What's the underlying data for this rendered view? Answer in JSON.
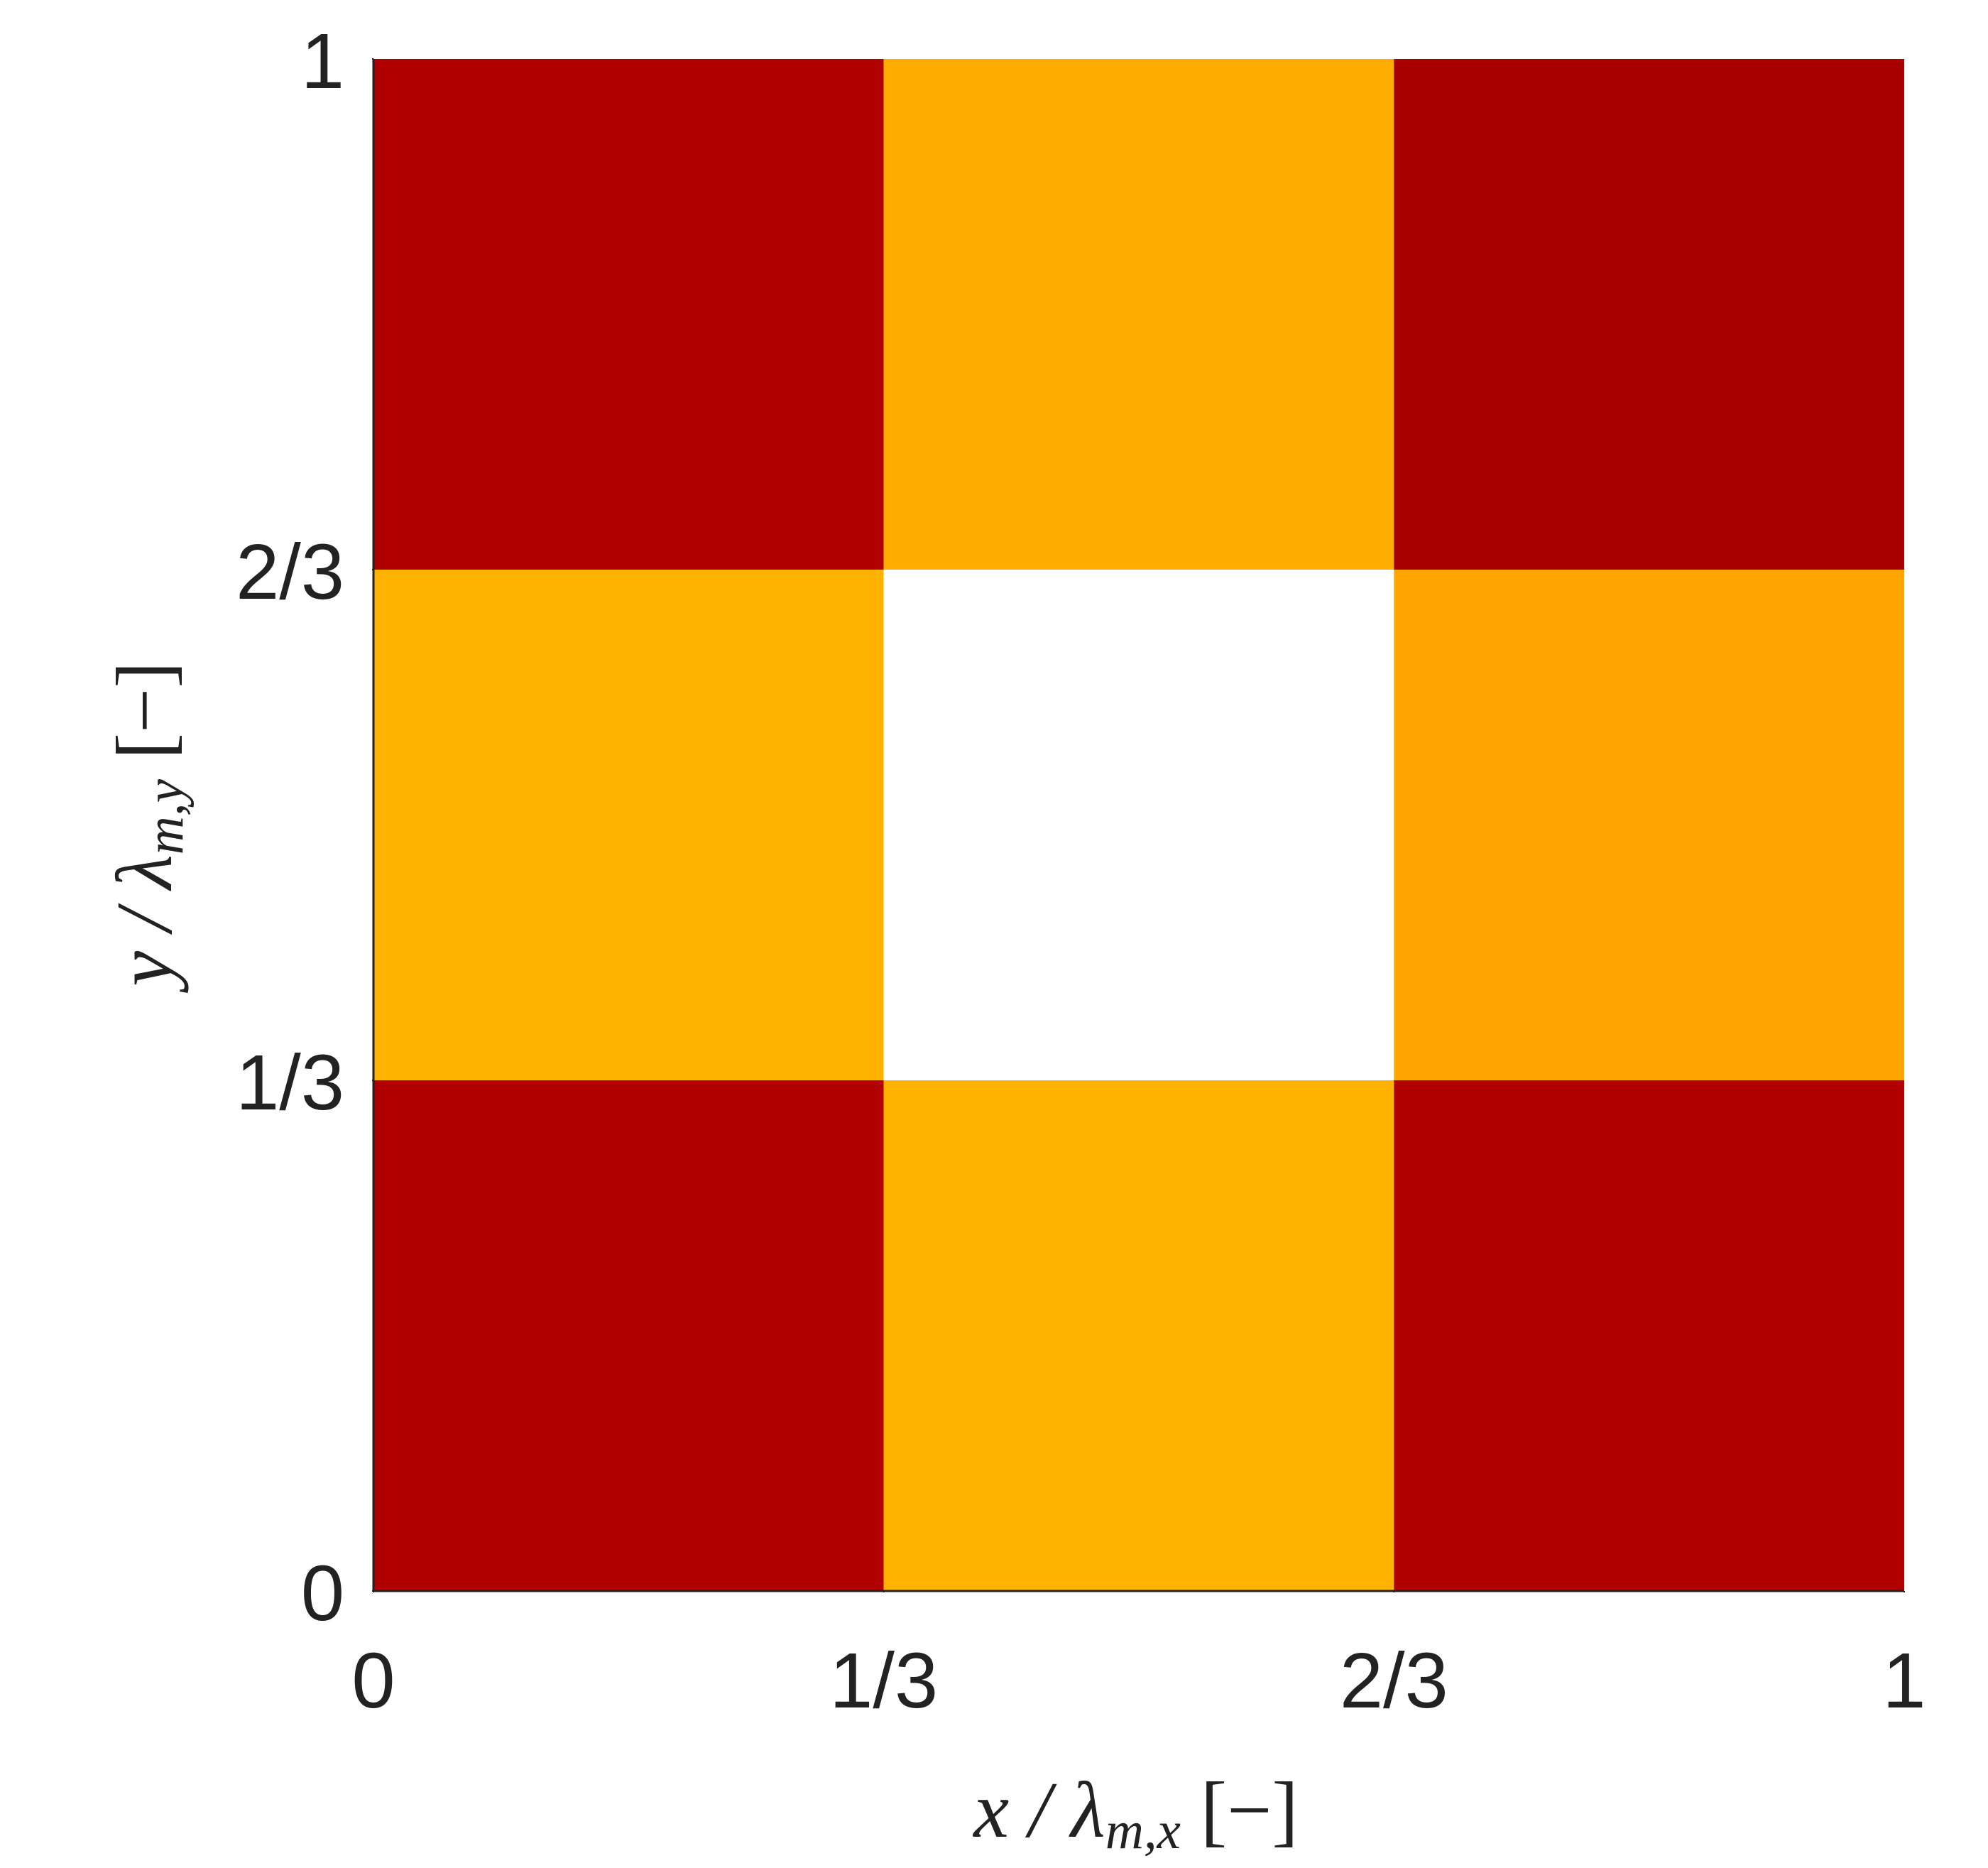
{
  "chart_data": {
    "type": "heatmap",
    "xlabel": {
      "base": "x / λ",
      "sub": "m,x",
      "unit": " [−]"
    },
    "ylabel": {
      "base": "y / λ",
      "sub": "m,y",
      "unit": " [−]"
    },
    "xlim": [
      0,
      1
    ],
    "ylim": [
      0,
      1
    ],
    "xticks": [
      0,
      {
        "value": 0.3333333333333333,
        "label": "1/3"
      },
      {
        "value": 0.6666666666666666,
        "label": "2/3"
      },
      1
    ],
    "yticks": [
      0,
      {
        "value": 0.3333333333333333,
        "label": "1/3"
      },
      {
        "value": 0.6666666666666666,
        "label": "2/3"
      },
      1
    ],
    "cell_colors": [
      [
        "#b00000",
        "#ffb300",
        "#b00000"
      ],
      [
        "#ffb300",
        "#ffffff",
        "#ffa700"
      ],
      [
        "#b00000",
        "#ffad00",
        "#a80000"
      ]
    ],
    "axis_color": "#222222"
  }
}
